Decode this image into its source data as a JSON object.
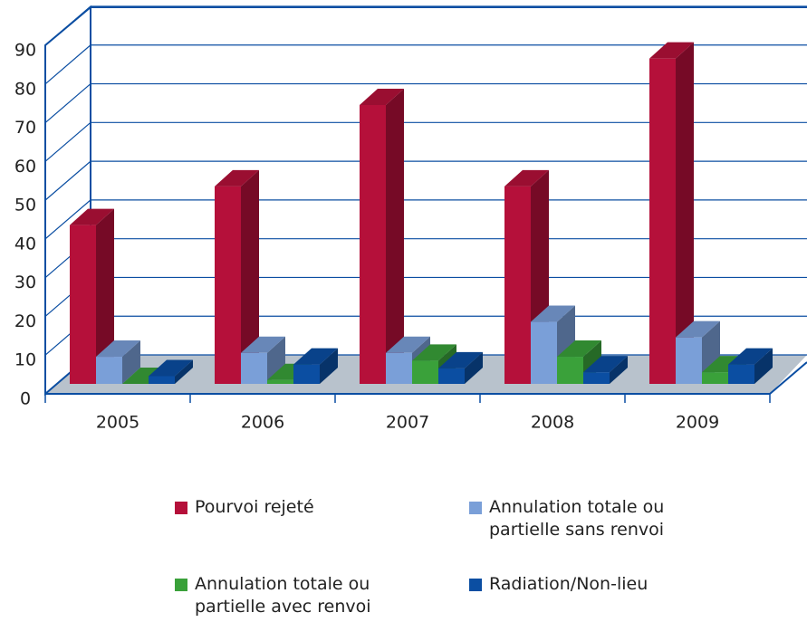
{
  "chart_data": {
    "type": "bar3d",
    "categories": [
      "2005",
      "2006",
      "2007",
      "2008",
      "2009"
    ],
    "series": [
      {
        "name": "Pourvoi rejeté",
        "color": "#b5103a",
        "values": [
          41,
          51,
          72,
          51,
          84
        ]
      },
      {
        "name": "Annulation totale ou partielle sans renvoi",
        "color": "#7a9fd8",
        "values": [
          7,
          8,
          8,
          16,
          12
        ]
      },
      {
        "name": "Annulation totale ou partielle avec renvoi",
        "color": "#3aa13a",
        "values": [
          0,
          1,
          6,
          7,
          3
        ]
      },
      {
        "name": "Radiation/Non-lieu",
        "color": "#0b4ea2",
        "values": [
          2,
          5,
          4,
          3,
          5
        ]
      }
    ],
    "ylim": [
      0,
      90
    ],
    "yticks": [
      0,
      10,
      20,
      30,
      40,
      50,
      60,
      70,
      80,
      90
    ],
    "grid": true
  }
}
